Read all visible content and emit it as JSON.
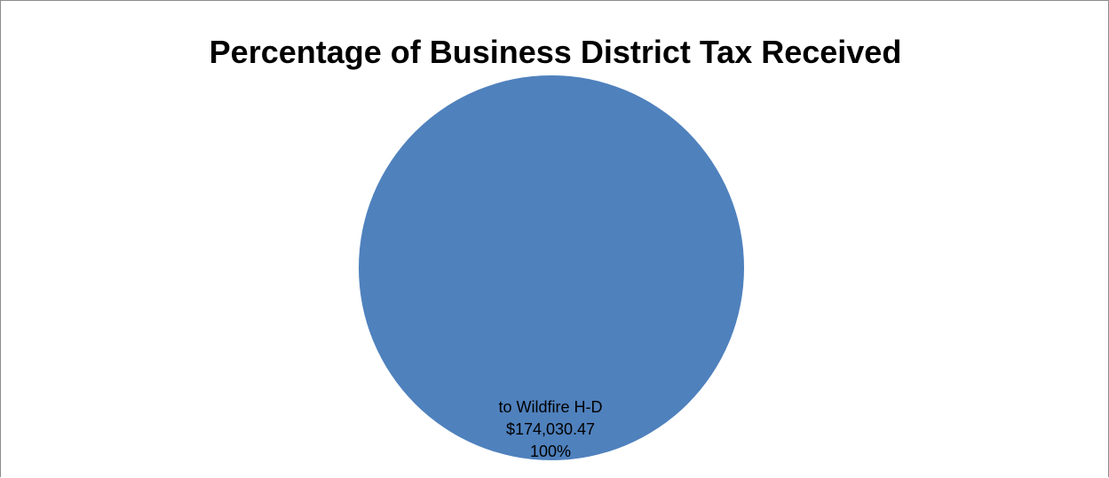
{
  "chart_data": {
    "type": "pie",
    "title": "Percentage of Business District Tax Received",
    "slices": [
      {
        "label": "to Wildfire H-D",
        "value": 174030.47,
        "value_label": "$174,030.47",
        "percent": 100,
        "percent_label": "100%",
        "color": "#4f81bd"
      }
    ]
  }
}
